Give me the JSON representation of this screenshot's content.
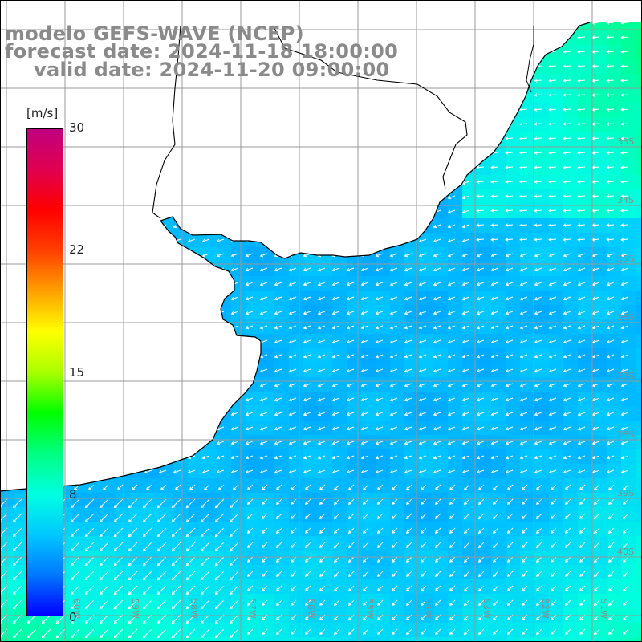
{
  "title": {
    "model": "modelo GEFS-WAVE (NCEP)",
    "forecast": "forecast date: 2024-11-18 18:00:00",
    "valid": "valid date: 2024-11-20 09:00:00"
  },
  "colorbar": {
    "unit": "[m/s]",
    "ticks": [
      "30",
      "22",
      "15",
      "8",
      "0"
    ],
    "range": [
      0,
      30
    ],
    "colors": [
      "#0000ff",
      "#0078ff",
      "#00c8ff",
      "#00ffe0",
      "#00ff80",
      "#00ff00",
      "#aaff00",
      "#ffff00",
      "#ffa000",
      "#ff4000",
      "#ff0000",
      "#e0004f",
      "#c0007f"
    ]
  },
  "colors": {
    "land": "#ffffff",
    "grid": "#999999",
    "coast": "#000000",
    "arrows": "#ffffff",
    "title_text": "#8a8a8a",
    "lat_lon_labels": "#8c8c8c"
  },
  "map": {
    "field": "wind speed",
    "arrow_direction": "mostly pointing west / southwest",
    "lat_labels": [
      "33S",
      "34S",
      "35S",
      "36S",
      "37S",
      "38S",
      "39S",
      "40S"
    ],
    "lon_labels": [
      "60W",
      "59W",
      "58W",
      "57W",
      "56W",
      "55W",
      "54W",
      "53W",
      "52W",
      "51W"
    ]
  }
}
